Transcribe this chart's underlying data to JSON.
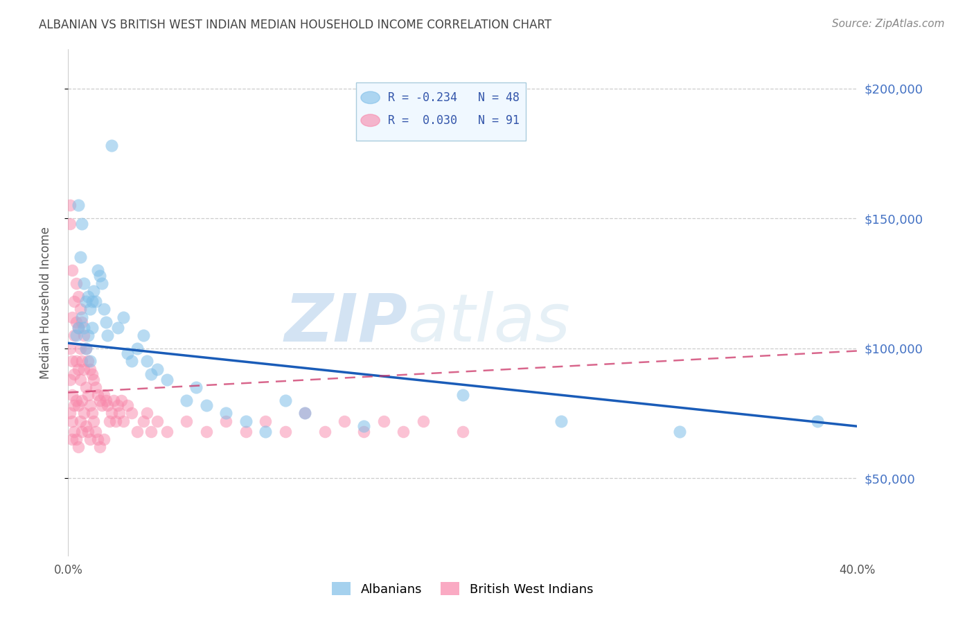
{
  "title": "ALBANIAN VS BRITISH WEST INDIAN MEDIAN HOUSEHOLD INCOME CORRELATION CHART",
  "source": "Source: ZipAtlas.com",
  "ylabel": "Median Household Income",
  "y_ticks": [
    50000,
    100000,
    150000,
    200000
  ],
  "y_tick_labels": [
    "$50,000",
    "$100,000",
    "$150,000",
    "$200,000"
  ],
  "x_lim": [
    0.0,
    0.4
  ],
  "y_lim": [
    20000,
    215000
  ],
  "legend_r1": "R = -0.234",
  "legend_n1": "N = 48",
  "legend_r2": "R =  0.030",
  "legend_n2": "N = 91",
  "color_albanian": "#7fbee8",
  "color_bwi": "#f887aa",
  "color_title": "#444444",
  "color_source": "#888888",
  "color_ytick": "#4472c4",
  "color_trendline_albanian": "#1a5cb8",
  "color_trendline_bwi": "#cc3366",
  "watermark_zip": "ZIP",
  "watermark_atlas": "atlas",
  "albanians_x": [
    0.004,
    0.005,
    0.005,
    0.006,
    0.007,
    0.007,
    0.008,
    0.008,
    0.009,
    0.009,
    0.01,
    0.01,
    0.011,
    0.011,
    0.012,
    0.012,
    0.013,
    0.014,
    0.015,
    0.016,
    0.017,
    0.018,
    0.019,
    0.02,
    0.022,
    0.025,
    0.028,
    0.03,
    0.032,
    0.035,
    0.038,
    0.04,
    0.042,
    0.045,
    0.05,
    0.06,
    0.065,
    0.07,
    0.08,
    0.09,
    0.1,
    0.11,
    0.12,
    0.15,
    0.2,
    0.25,
    0.31,
    0.38
  ],
  "albanians_y": [
    105000,
    155000,
    108000,
    135000,
    148000,
    112000,
    125000,
    108000,
    118000,
    100000,
    120000,
    105000,
    115000,
    95000,
    118000,
    108000,
    122000,
    118000,
    130000,
    128000,
    125000,
    115000,
    110000,
    105000,
    178000,
    108000,
    112000,
    98000,
    95000,
    100000,
    105000,
    95000,
    90000,
    92000,
    88000,
    80000,
    85000,
    78000,
    75000,
    72000,
    68000,
    80000,
    75000,
    70000,
    82000,
    72000,
    68000,
    72000
  ],
  "bwi_x": [
    0.001,
    0.001,
    0.001,
    0.001,
    0.001,
    0.002,
    0.002,
    0.002,
    0.002,
    0.002,
    0.002,
    0.003,
    0.003,
    0.003,
    0.003,
    0.003,
    0.004,
    0.004,
    0.004,
    0.004,
    0.004,
    0.005,
    0.005,
    0.005,
    0.005,
    0.005,
    0.006,
    0.006,
    0.006,
    0.006,
    0.007,
    0.007,
    0.007,
    0.007,
    0.008,
    0.008,
    0.008,
    0.009,
    0.009,
    0.009,
    0.01,
    0.01,
    0.01,
    0.011,
    0.011,
    0.011,
    0.012,
    0.012,
    0.013,
    0.013,
    0.014,
    0.014,
    0.015,
    0.015,
    0.016,
    0.016,
    0.017,
    0.018,
    0.018,
    0.019,
    0.02,
    0.021,
    0.022,
    0.023,
    0.024,
    0.025,
    0.026,
    0.027,
    0.028,
    0.03,
    0.032,
    0.035,
    0.038,
    0.04,
    0.042,
    0.045,
    0.05,
    0.06,
    0.07,
    0.08,
    0.09,
    0.1,
    0.11,
    0.12,
    0.13,
    0.14,
    0.15,
    0.16,
    0.17,
    0.18,
    0.2
  ],
  "bwi_y": [
    155000,
    148000,
    100000,
    88000,
    75000,
    130000,
    112000,
    95000,
    82000,
    72000,
    65000,
    118000,
    105000,
    90000,
    78000,
    68000,
    125000,
    110000,
    95000,
    80000,
    65000,
    120000,
    108000,
    92000,
    78000,
    62000,
    115000,
    100000,
    88000,
    72000,
    110000,
    95000,
    80000,
    68000,
    105000,
    92000,
    75000,
    100000,
    85000,
    70000,
    95000,
    82000,
    68000,
    92000,
    78000,
    65000,
    90000,
    75000,
    88000,
    72000,
    85000,
    68000,
    82000,
    65000,
    80000,
    62000,
    78000,
    82000,
    65000,
    80000,
    78000,
    72000,
    75000,
    80000,
    72000,
    78000,
    75000,
    80000,
    72000,
    78000,
    75000,
    68000,
    72000,
    75000,
    68000,
    72000,
    68000,
    72000,
    68000,
    72000,
    68000,
    72000,
    68000,
    75000,
    68000,
    72000,
    68000,
    72000,
    68000,
    72000,
    68000
  ],
  "alb_trend_x0": 0.0,
  "alb_trend_y0": 102000,
  "alb_trend_x1": 0.4,
  "alb_trend_y1": 70000,
  "bwi_trend_x0": 0.0,
  "bwi_trend_y0": 83000,
  "bwi_trend_x1": 0.4,
  "bwi_trend_y1": 99000
}
